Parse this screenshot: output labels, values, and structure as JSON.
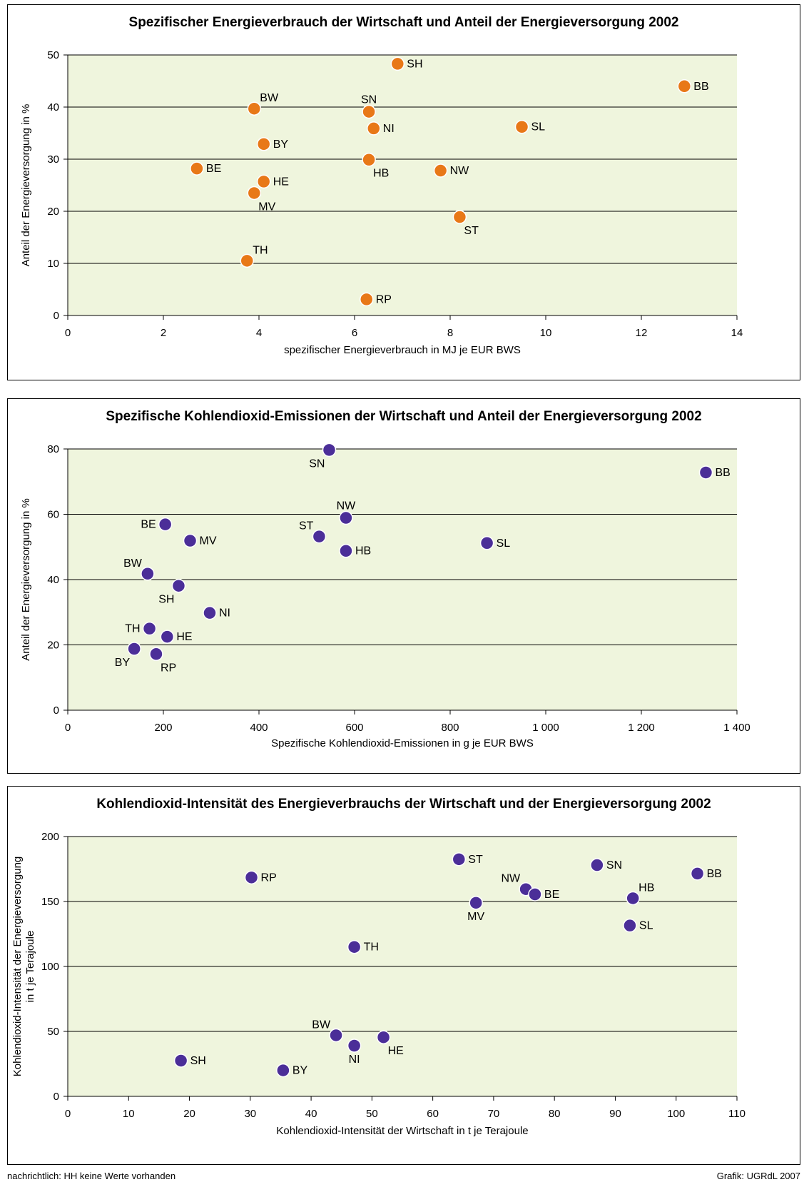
{
  "colors": {
    "plot_bg": "#eff5dd",
    "orange": "#e87817",
    "purple": "#4b2e98",
    "grid": "#000000"
  },
  "footer": {
    "note": "nachrichtlich: HH keine Werte vorhanden",
    "credit": "Grafik: UGRdL 2007"
  },
  "chart_data": [
    {
      "type": "scatter",
      "title": "Spezifischer Energieverbrauch der Wirtschaft und Anteil der Energieversorgung 2002",
      "xlabel": "spezifischer Energieverbrauch in MJ je EUR BWS",
      "ylabel": "Anteil der Energieversorgung in %",
      "xlim": [
        0,
        14
      ],
      "ylim": [
        0,
        50
      ],
      "xticks": [
        0,
        2,
        4,
        6,
        8,
        10,
        12,
        14
      ],
      "yticks": [
        0,
        10,
        20,
        30,
        40,
        50
      ],
      "xtick_labels": [
        "0",
        "2",
        "4",
        "6",
        "8",
        "10",
        "12",
        "14"
      ],
      "ytick_labels": [
        "0",
        "10",
        "20",
        "30",
        "40",
        "50"
      ],
      "grid": "horizontal",
      "marker_color": "orange",
      "points": [
        {
          "label": "SH",
          "x": 6.9,
          "y": 48.3,
          "pos": "right"
        },
        {
          "label": "BB",
          "x": 12.9,
          "y": 44.0,
          "pos": "right"
        },
        {
          "label": "BW",
          "x": 3.9,
          "y": 39.7,
          "pos": "above-right"
        },
        {
          "label": "SN",
          "x": 6.3,
          "y": 39.1,
          "pos": "above"
        },
        {
          "label": "NI",
          "x": 6.4,
          "y": 35.9,
          "pos": "right"
        },
        {
          "label": "SL",
          "x": 9.5,
          "y": 36.2,
          "pos": "right"
        },
        {
          "label": "BY",
          "x": 4.1,
          "y": 32.9,
          "pos": "right"
        },
        {
          "label": "HB",
          "x": 6.3,
          "y": 29.9,
          "pos": "below-right"
        },
        {
          "label": "NW",
          "x": 7.8,
          "y": 27.8,
          "pos": "right"
        },
        {
          "label": "BE",
          "x": 2.7,
          "y": 28.2,
          "pos": "right"
        },
        {
          "label": "HE",
          "x": 4.1,
          "y": 25.7,
          "pos": "right"
        },
        {
          "label": "MV",
          "x": 3.9,
          "y": 23.5,
          "pos": "below-right"
        },
        {
          "label": "ST",
          "x": 8.2,
          "y": 18.9,
          "pos": "below-right"
        },
        {
          "label": "TH",
          "x": 3.75,
          "y": 10.5,
          "pos": "above-right"
        },
        {
          "label": "RP",
          "x": 6.25,
          "y": 3.1,
          "pos": "right"
        }
      ]
    },
    {
      "type": "scatter",
      "title": "Spezifische Kohlendioxid-Emissionen der Wirtschaft und Anteil der Energieversorgung 2002",
      "xlabel": "Spezifische Kohlendioxid-Emissionen in g je EUR BWS",
      "ylabel": "Anteil der Energieversorgung in %",
      "xlim": [
        0,
        1400
      ],
      "ylim": [
        0,
        80
      ],
      "xticks": [
        0,
        200,
        400,
        600,
        800,
        1000,
        1200,
        1400
      ],
      "yticks": [
        0,
        20,
        40,
        60,
        80
      ],
      "xtick_labels": [
        "0",
        "200",
        "400",
        "600",
        "800",
        "1 000",
        "1 200",
        "1 400"
      ],
      "ytick_labels": [
        "0",
        "20",
        "40",
        "60",
        "80"
      ],
      "grid": "horizontal",
      "marker_color": "purple",
      "points": [
        {
          "label": "SN",
          "x": 547,
          "y": 79.7,
          "pos": "below-left"
        },
        {
          "label": "BB",
          "x": 1335,
          "y": 72.8,
          "pos": "right"
        },
        {
          "label": "NW",
          "x": 582,
          "y": 58.9,
          "pos": "above"
        },
        {
          "label": "BE",
          "x": 204,
          "y": 56.9,
          "pos": "left"
        },
        {
          "label": "ST",
          "x": 526,
          "y": 53.2,
          "pos": "above-left"
        },
        {
          "label": "MV",
          "x": 256,
          "y": 51.9,
          "pos": "right"
        },
        {
          "label": "SL",
          "x": 877,
          "y": 51.2,
          "pos": "right"
        },
        {
          "label": "HB",
          "x": 582,
          "y": 48.8,
          "pos": "right"
        },
        {
          "label": "BW",
          "x": 167,
          "y": 41.8,
          "pos": "above-left"
        },
        {
          "label": "SH",
          "x": 232,
          "y": 38.1,
          "pos": "below-left"
        },
        {
          "label": "NI",
          "x": 297,
          "y": 29.8,
          "pos": "right"
        },
        {
          "label": "TH",
          "x": 171,
          "y": 25.0,
          "pos": "left"
        },
        {
          "label": "HE",
          "x": 208,
          "y": 22.5,
          "pos": "right"
        },
        {
          "label": "BY",
          "x": 139,
          "y": 18.8,
          "pos": "below-left"
        },
        {
          "label": "RP",
          "x": 185,
          "y": 17.2,
          "pos": "below-right"
        }
      ]
    },
    {
      "type": "scatter",
      "title": "Kohlendioxid-Intensität des Energieverbrauchs der Wirtschaft und der Energieversorgung 2002",
      "xlabel": "Kohlendioxid-Intensität der Wirtschaft in t je Terajoule",
      "ylabel_lines": [
        "Kohlendioxid-Intensität der Energieversorgung",
        "in t je Terajoule"
      ],
      "xlim": [
        0,
        110
      ],
      "ylim": [
        0,
        200
      ],
      "xticks": [
        0,
        10,
        20,
        30,
        40,
        50,
        60,
        70,
        80,
        90,
        100,
        110
      ],
      "yticks": [
        0,
        50,
        100,
        150,
        200
      ],
      "xtick_labels": [
        "0",
        "10",
        "20",
        "30",
        "40",
        "50",
        "60",
        "70",
        "80",
        "90",
        "100",
        "110"
      ],
      "ytick_labels": [
        "0",
        "50",
        "100",
        "150",
        "200"
      ],
      "grid": "horizontal",
      "marker_color": "purple",
      "points": [
        {
          "label": "ST",
          "x": 64.3,
          "y": 182.5,
          "pos": "right"
        },
        {
          "label": "SN",
          "x": 87.0,
          "y": 178.0,
          "pos": "right"
        },
        {
          "label": "BB",
          "x": 103.5,
          "y": 171.5,
          "pos": "right"
        },
        {
          "label": "RP",
          "x": 30.2,
          "y": 168.5,
          "pos": "right"
        },
        {
          "label": "NW",
          "x": 75.3,
          "y": 159.5,
          "pos": "above-left"
        },
        {
          "label": "BE",
          "x": 76.8,
          "y": 155.5,
          "pos": "right"
        },
        {
          "label": "HB",
          "x": 92.9,
          "y": 152.5,
          "pos": "above-right"
        },
        {
          "label": "MV",
          "x": 67.1,
          "y": 149.0,
          "pos": "below"
        },
        {
          "label": "SL",
          "x": 92.4,
          "y": 131.5,
          "pos": "right"
        },
        {
          "label": "TH",
          "x": 47.1,
          "y": 115.0,
          "pos": "right"
        },
        {
          "label": "BW",
          "x": 44.1,
          "y": 47.0,
          "pos": "above-left"
        },
        {
          "label": "HE",
          "x": 51.9,
          "y": 45.5,
          "pos": "below-right"
        },
        {
          "label": "NI",
          "x": 47.1,
          "y": 39.0,
          "pos": "below"
        },
        {
          "label": "SH",
          "x": 18.6,
          "y": 27.5,
          "pos": "right"
        },
        {
          "label": "BY",
          "x": 35.4,
          "y": 20.0,
          "pos": "right"
        }
      ]
    }
  ]
}
